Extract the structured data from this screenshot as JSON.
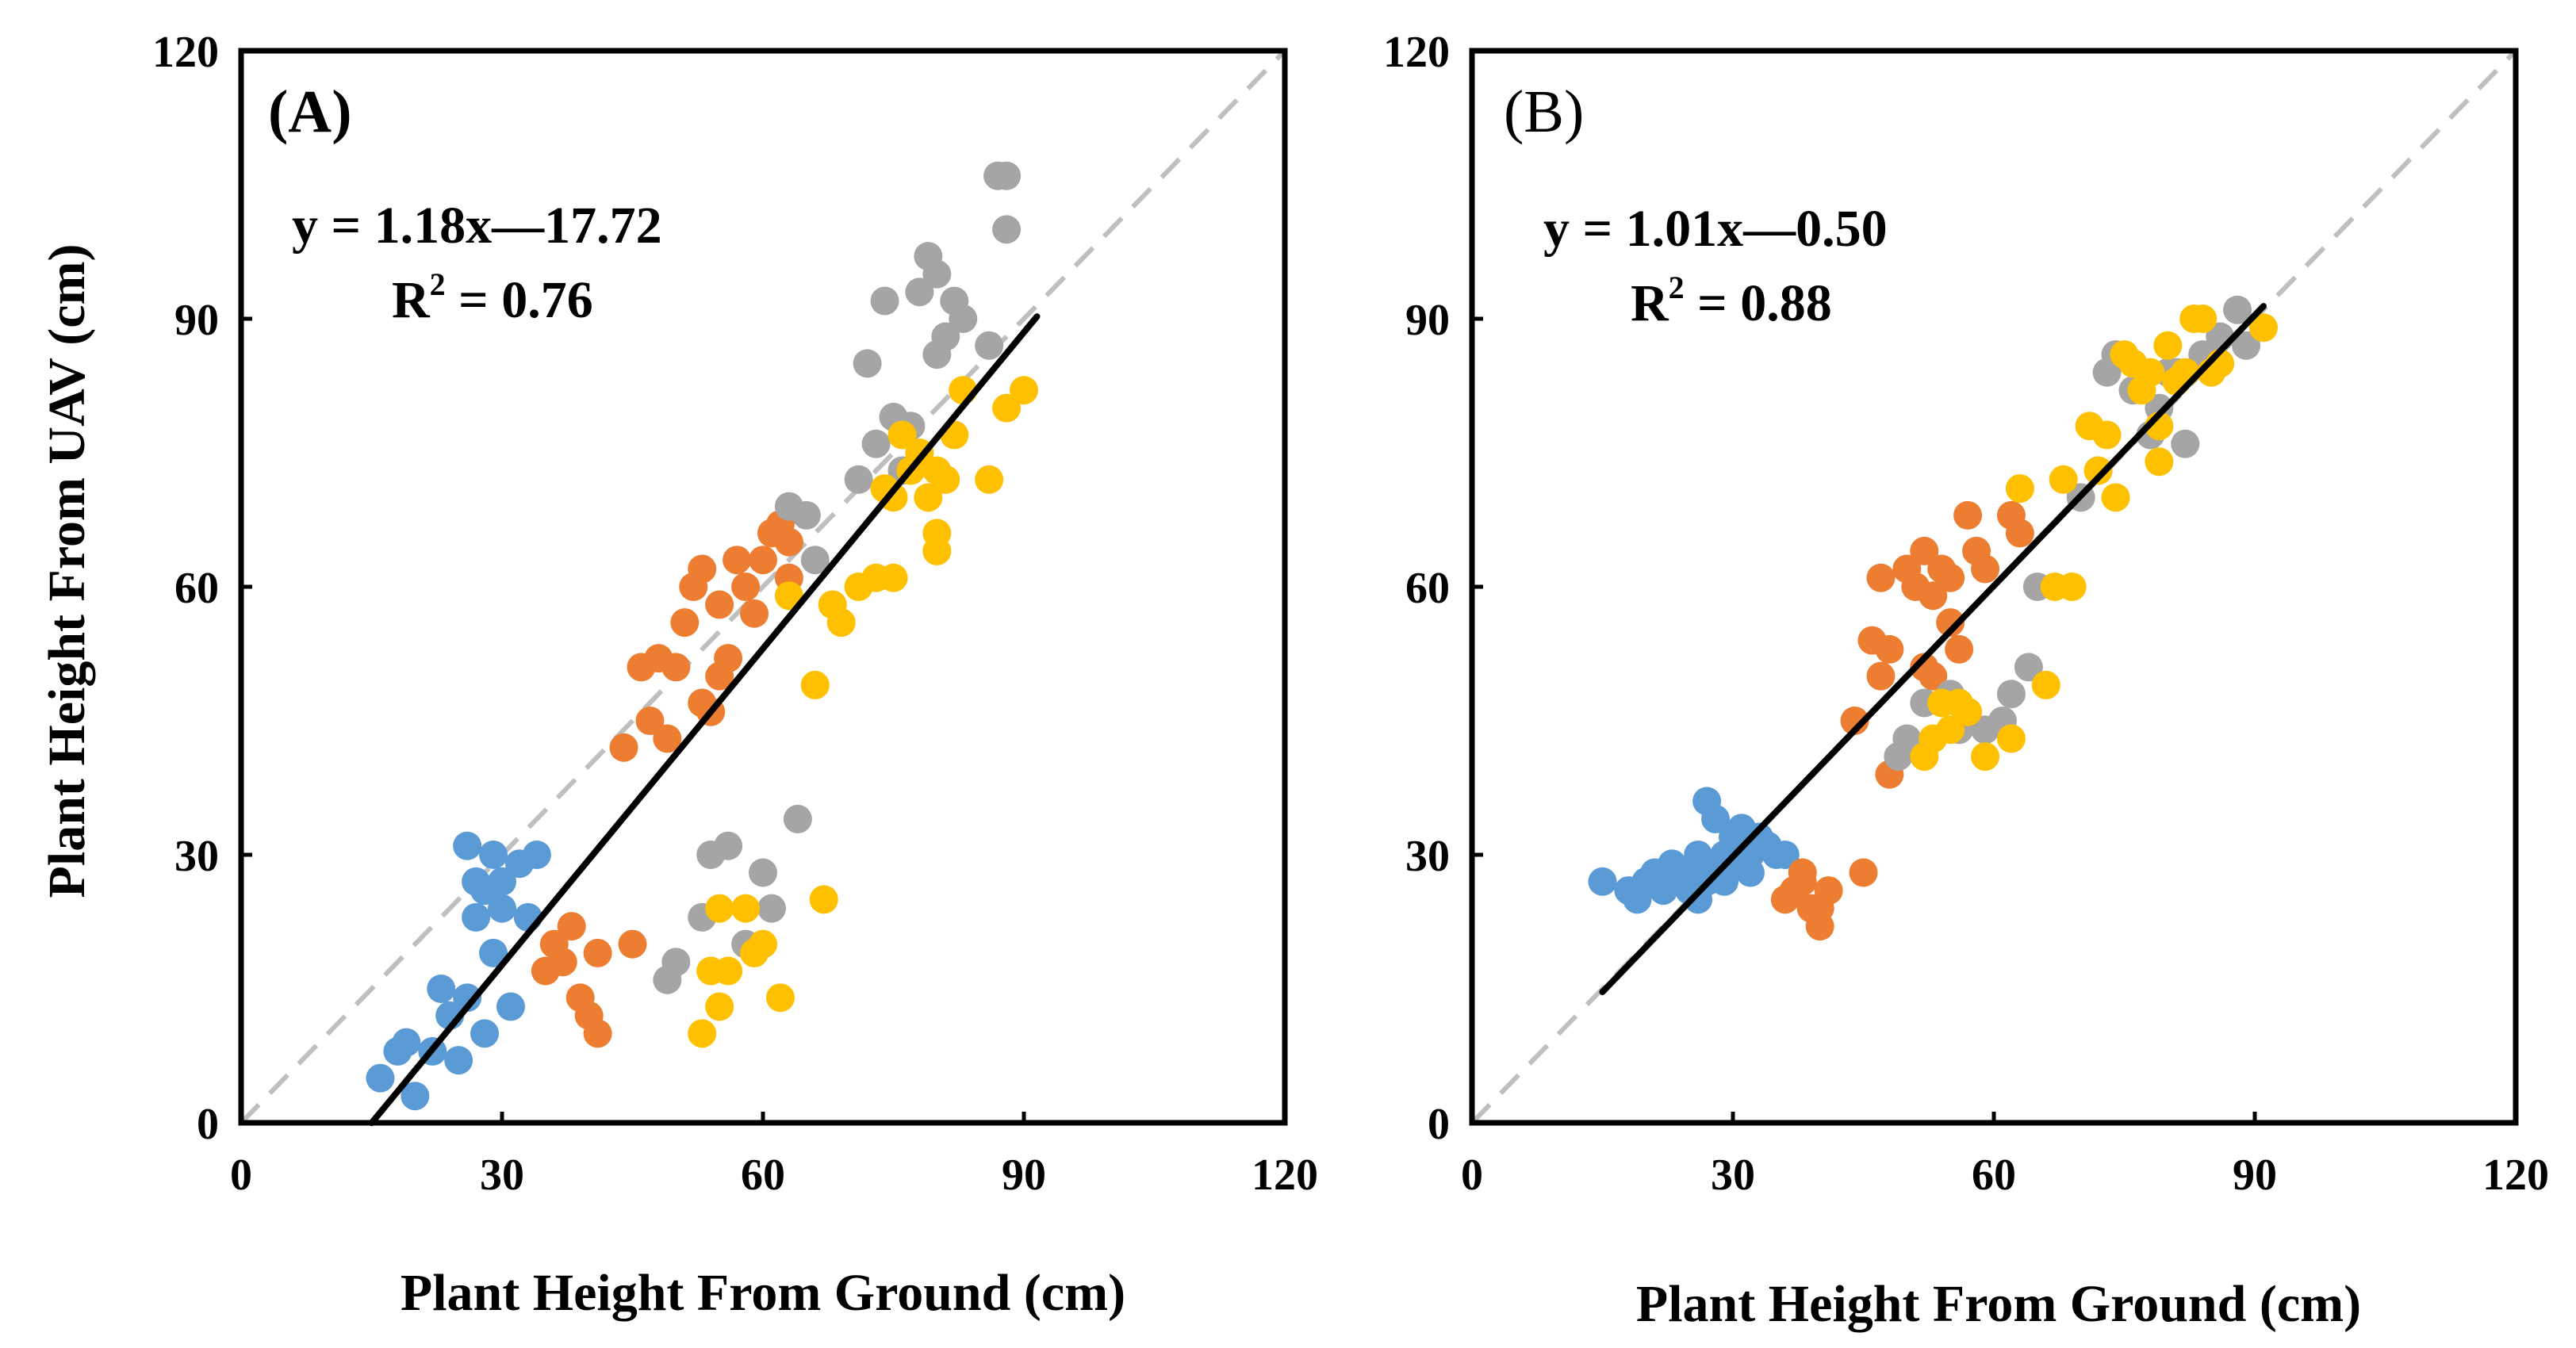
{
  "chart_data": [
    {
      "type": "scatter",
      "panel_label": "(A)",
      "equation": "y = 1.18x—17.72",
      "r2_prefix": "R",
      "r2_sup": "2",
      "r2_value": " = 0.76",
      "xlabel": "Plant Height From Ground (cm)",
      "ylabel": "Plant Height From UAV (cm)",
      "xlim": [
        0,
        120
      ],
      "ylim": [
        0,
        120
      ],
      "xticks": [
        "0",
        "30",
        "60",
        "90",
        "120"
      ],
      "yticks": [
        "0",
        "30",
        "60",
        "90",
        "120"
      ],
      "fit_line": {
        "slope": 1.18,
        "intercept": -17.72,
        "x_range": [
          15.0,
          91.5
        ]
      },
      "reference_line": "1:1 dashed",
      "series": [
        {
          "name": "blue",
          "color": "#5B9BD5",
          "points": [
            [
              16,
              5
            ],
            [
              18,
              8
            ],
            [
              19,
              9
            ],
            [
              20,
              3
            ],
            [
              22,
              8
            ],
            [
              23,
              15
            ],
            [
              24,
              12
            ],
            [
              25,
              7
            ],
            [
              26,
              14
            ],
            [
              26,
              31
            ],
            [
              27,
              23
            ],
            [
              27,
              27
            ],
            [
              28,
              10
            ],
            [
              28,
              26
            ],
            [
              29,
              19
            ],
            [
              29,
              30
            ],
            [
              30,
              24
            ],
            [
              30,
              27
            ],
            [
              31,
              13
            ],
            [
              32,
              29
            ],
            [
              33,
              23
            ],
            [
              34,
              30
            ]
          ]
        },
        {
          "name": "orange",
          "color": "#ED7D31",
          "points": [
            [
              35,
              17
            ],
            [
              36,
              20
            ],
            [
              37,
              18
            ],
            [
              38,
              22
            ],
            [
              39,
              14
            ],
            [
              40,
              12
            ],
            [
              41,
              10
            ],
            [
              41,
              19
            ],
            [
              44,
              42
            ],
            [
              45,
              20
            ],
            [
              46,
              51
            ],
            [
              47,
              45
            ],
            [
              48,
              52
            ],
            [
              49,
              43
            ],
            [
              50,
              51
            ],
            [
              51,
              56
            ],
            [
              52,
              60
            ],
            [
              53,
              47
            ],
            [
              53,
              62
            ],
            [
              54,
              46
            ],
            [
              55,
              50
            ],
            [
              55,
              58
            ],
            [
              56,
              52
            ],
            [
              57,
              63
            ],
            [
              58,
              60
            ],
            [
              59,
              57
            ],
            [
              60,
              63
            ],
            [
              61,
              66
            ],
            [
              62,
              67
            ],
            [
              63,
              65
            ],
            [
              63,
              61
            ]
          ]
        },
        {
          "name": "gray",
          "color": "#A5A5A5",
          "points": [
            [
              49,
              16
            ],
            [
              50,
              18
            ],
            [
              53,
              23
            ],
            [
              54,
              30
            ],
            [
              56,
              31
            ],
            [
              58,
              20
            ],
            [
              60,
              28
            ],
            [
              61,
              24
            ],
            [
              63,
              69
            ],
            [
              64,
              34
            ],
            [
              65,
              68
            ],
            [
              66,
              63
            ],
            [
              71,
              72
            ],
            [
              72,
              85
            ],
            [
              73,
              76
            ],
            [
              74,
              92
            ],
            [
              75,
              79
            ],
            [
              76,
              73
            ],
            [
              77,
              78
            ],
            [
              78,
              93
            ],
            [
              79,
              97
            ],
            [
              80,
              95
            ],
            [
              80,
              86
            ],
            [
              81,
              88
            ],
            [
              82,
              92
            ],
            [
              83,
              90
            ],
            [
              86,
              87
            ],
            [
              87,
              106
            ],
            [
              88,
              106
            ],
            [
              88,
              100
            ]
          ]
        },
        {
          "name": "yellow",
          "color": "#FFC000",
          "points": [
            [
              53,
              10
            ],
            [
              54,
              17
            ],
            [
              55,
              24
            ],
            [
              55,
              13
            ],
            [
              56,
              17
            ],
            [
              58,
              24
            ],
            [
              59,
              19
            ],
            [
              60,
              20
            ],
            [
              62,
              14
            ],
            [
              63,
              59
            ],
            [
              66,
              49
            ],
            [
              67,
              25
            ],
            [
              68,
              58
            ],
            [
              69,
              56
            ],
            [
              71,
              60
            ],
            [
              73,
              61
            ],
            [
              74,
              71
            ],
            [
              75,
              70
            ],
            [
              75,
              61
            ],
            [
              76,
              77
            ],
            [
              77,
              73
            ],
            [
              78,
              75
            ],
            [
              79,
              70
            ],
            [
              80,
              73
            ],
            [
              80,
              66
            ],
            [
              80,
              64
            ],
            [
              81,
              72
            ],
            [
              82,
              77
            ],
            [
              83,
              82
            ],
            [
              86,
              72
            ],
            [
              88,
              80
            ],
            [
              90,
              82
            ]
          ]
        }
      ]
    },
    {
      "type": "scatter",
      "panel_label": "(B)",
      "equation": "y = 1.01x—0.50",
      "r2_prefix": "R",
      "r2_sup": "2",
      "r2_value": " = 0.88",
      "xlabel": "Plant Height From Ground (cm)",
      "ylabel": "",
      "xlim": [
        0,
        120
      ],
      "ylim": [
        0,
        120
      ],
      "xticks": [
        "0",
        "30",
        "60",
        "90",
        "120"
      ],
      "yticks": [
        "0",
        "30",
        "60",
        "90",
        "120"
      ],
      "fit_line": {
        "slope": 1.01,
        "intercept": -0.5,
        "x_range": [
          15.0,
          91.0
        ]
      },
      "reference_line": "1:1 dashed",
      "series": [
        {
          "name": "blue",
          "color": "#5B9BD5",
          "points": [
            [
              15,
              27
            ],
            [
              18,
              26
            ],
            [
              19,
              25
            ],
            [
              20,
              27
            ],
            [
              21,
              28
            ],
            [
              22,
              26
            ],
            [
              23,
              29
            ],
            [
              24,
              27
            ],
            [
              25,
              28
            ],
            [
              25,
              26
            ],
            [
              26,
              30
            ],
            [
              26,
              25
            ],
            [
              27,
              27
            ],
            [
              27,
              36
            ],
            [
              28,
              28
            ],
            [
              28,
              34
            ],
            [
              29,
              30
            ],
            [
              29,
              27
            ],
            [
              30,
              32
            ],
            [
              30,
              29
            ],
            [
              31,
              31
            ],
            [
              31,
              33
            ],
            [
              32,
              30
            ],
            [
              32,
              28
            ],
            [
              33,
              32
            ],
            [
              34,
              31
            ],
            [
              35,
              30
            ],
            [
              36,
              30
            ]
          ]
        },
        {
          "name": "orange",
          "color": "#ED7D31",
          "points": [
            [
              36,
              25
            ],
            [
              37,
              26
            ],
            [
              38,
              27
            ],
            [
              38,
              28
            ],
            [
              39,
              24
            ],
            [
              40,
              24
            ],
            [
              40,
              22
            ],
            [
              41,
              26
            ],
            [
              44,
              45
            ],
            [
              45,
              28
            ],
            [
              46,
              54
            ],
            [
              47,
              50
            ],
            [
              47,
              61
            ],
            [
              48,
              39
            ],
            [
              48,
              53
            ],
            [
              50,
              62
            ],
            [
              51,
              60
            ],
            [
              52,
              51
            ],
            [
              52,
              64
            ],
            [
              53,
              59
            ],
            [
              53,
              50
            ],
            [
              54,
              62
            ],
            [
              55,
              56
            ],
            [
              55,
              61
            ],
            [
              56,
              53
            ],
            [
              57,
              68
            ],
            [
              58,
              64
            ],
            [
              59,
              62
            ],
            [
              62,
              68
            ],
            [
              63,
              66
            ]
          ]
        },
        {
          "name": "gray",
          "color": "#A5A5A5",
          "points": [
            [
              49,
              41
            ],
            [
              50,
              43
            ],
            [
              52,
              47
            ],
            [
              55,
              48
            ],
            [
              56,
              44
            ],
            [
              59,
              44
            ],
            [
              61,
              45
            ],
            [
              62,
              48
            ],
            [
              64,
              51
            ],
            [
              65,
              60
            ],
            [
              70,
              70
            ],
            [
              72,
              73
            ],
            [
              73,
              84
            ],
            [
              74,
              86
            ],
            [
              76,
              82
            ],
            [
              78,
              77
            ],
            [
              79,
              80
            ],
            [
              80,
              84
            ],
            [
              81,
              84
            ],
            [
              82,
              76
            ],
            [
              84,
              86
            ],
            [
              86,
              88
            ],
            [
              88,
              91
            ],
            [
              89,
              87
            ]
          ]
        },
        {
          "name": "yellow",
          "color": "#FFC000",
          "points": [
            [
              52,
              41
            ],
            [
              53,
              43
            ],
            [
              54,
              47
            ],
            [
              55,
              44
            ],
            [
              56,
              47
            ],
            [
              57,
              46
            ],
            [
              59,
              41
            ],
            [
              62,
              43
            ],
            [
              63,
              71
            ],
            [
              66,
              49
            ],
            [
              67,
              60
            ],
            [
              68,
              72
            ],
            [
              69,
              60
            ],
            [
              71,
              78
            ],
            [
              72,
              73
            ],
            [
              73,
              77
            ],
            [
              74,
              70
            ],
            [
              75,
              86
            ],
            [
              76,
              85
            ],
            [
              77,
              82
            ],
            [
              78,
              84
            ],
            [
              79,
              78
            ],
            [
              79,
              74
            ],
            [
              80,
              87
            ],
            [
              81,
              83
            ],
            [
              82,
              84
            ],
            [
              83,
              90
            ],
            [
              84,
              90
            ],
            [
              85,
              84
            ],
            [
              86,
              85
            ],
            [
              91,
              89
            ]
          ]
        }
      ]
    }
  ]
}
